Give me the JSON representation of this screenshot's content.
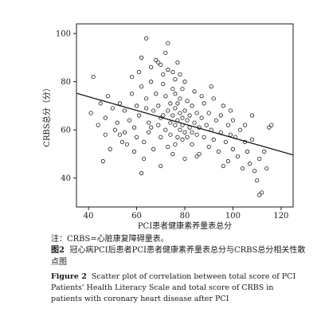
{
  "chart_data": {
    "type": "scatter",
    "xlabel": "PCI患者健康素养量表总分",
    "ylabel": "CRBS总分（分）",
    "xlim": [
      35,
      125
    ],
    "ylim": [
      28,
      104
    ],
    "xticks": [
      40,
      60,
      80,
      100,
      120
    ],
    "yticks": [
      40,
      60,
      80,
      100
    ],
    "grid": false,
    "trendline": {
      "x": [
        35,
        125
      ],
      "y": [
        75.2,
        49.6
      ]
    },
    "points": [
      [
        41,
        67
      ],
      [
        42,
        82
      ],
      [
        44,
        62
      ],
      [
        45,
        71
      ],
      [
        46,
        47
      ],
      [
        47,
        65
      ],
      [
        48,
        74
      ],
      [
        49,
        52
      ],
      [
        50,
        69
      ],
      [
        51,
        60
      ],
      [
        52,
        63
      ],
      [
        53,
        71
      ],
      [
        54,
        55
      ],
      [
        55,
        68
      ],
      [
        55,
        59
      ],
      [
        56,
        54
      ],
      [
        57,
        64
      ],
      [
        58,
        75
      ],
      [
        59,
        61
      ],
      [
        59,
        51
      ],
      [
        60,
        70
      ],
      [
        60,
        57
      ],
      [
        61,
        84
      ],
      [
        61,
        66
      ],
      [
        62,
        78
      ],
      [
        62,
        42
      ],
      [
        63,
        48
      ],
      [
        63,
        55
      ],
      [
        64,
        73
      ],
      [
        64,
        98
      ],
      [
        65,
        63
      ],
      [
        65,
        59
      ],
      [
        66,
        80
      ],
      [
        66,
        86
      ],
      [
        67,
        68
      ],
      [
        67,
        52
      ],
      [
        68,
        75
      ],
      [
        68,
        89
      ],
      [
        69,
        62
      ],
      [
        69,
        70
      ],
      [
        70,
        45
      ],
      [
        70,
        57
      ],
      [
        70,
        87
      ],
      [
        71,
        66
      ],
      [
        71,
        79
      ],
      [
        71,
        83
      ],
      [
        72,
        60
      ],
      [
        72,
        74
      ],
      [
        72,
        92
      ],
      [
        73,
        68
      ],
      [
        73,
        53
      ],
      [
        73,
        85
      ],
      [
        74,
        63
      ],
      [
        74,
        71
      ],
      [
        74,
        58
      ],
      [
        75,
        77
      ],
      [
        75,
        66
      ],
      [
        75,
        84
      ],
      [
        75,
        50
      ],
      [
        76,
        62
      ],
      [
        76,
        69
      ],
      [
        76,
        75
      ],
      [
        76,
        81
      ],
      [
        77,
        64
      ],
      [
        77,
        57
      ],
      [
        77,
        88
      ],
      [
        77,
        71
      ],
      [
        78,
        67
      ],
      [
        78,
        60
      ],
      [
        78,
        73
      ],
      [
        78,
        83
      ],
      [
        79,
        65
      ],
      [
        79,
        56
      ],
      [
        79,
        77
      ],
      [
        79,
        62
      ],
      [
        80,
        68
      ],
      [
        80,
        59
      ],
      [
        80,
        80
      ],
      [
        80,
        48
      ],
      [
        81,
        64
      ],
      [
        81,
        72
      ],
      [
        81,
        57
      ],
      [
        82,
        66
      ],
      [
        82,
        61
      ],
      [
        83,
        70
      ],
      [
        83,
        54
      ],
      [
        84,
        63
      ],
      [
        84,
        76
      ],
      [
        85,
        58
      ],
      [
        85,
        67
      ],
      [
        86,
        61
      ],
      [
        86,
        50
      ],
      [
        87,
        65
      ],
      [
        88,
        71
      ],
      [
        88,
        57
      ],
      [
        89,
        62
      ],
      [
        90,
        53
      ],
      [
        90,
        67
      ],
      [
        91,
        60
      ],
      [
        92,
        73
      ],
      [
        92,
        56
      ],
      [
        93,
        64
      ],
      [
        94,
        51
      ],
      [
        95,
        59
      ],
      [
        95,
        66
      ],
      [
        96,
        70
      ],
      [
        97,
        55
      ],
      [
        98,
        62
      ],
      [
        98,
        47
      ],
      [
        99,
        58
      ],
      [
        100,
        64
      ],
      [
        100,
        52
      ],
      [
        101,
        57
      ],
      [
        102,
        49
      ],
      [
        103,
        60
      ],
      [
        104,
        44
      ],
      [
        105,
        55
      ],
      [
        106,
        51
      ],
      [
        107,
        46
      ],
      [
        108,
        56
      ],
      [
        109,
        43
      ],
      [
        110,
        39
      ],
      [
        111,
        48
      ],
      [
        112,
        34
      ],
      [
        113,
        51
      ],
      [
        114,
        44
      ],
      [
        115,
        61
      ],
      [
        116,
        62
      ],
      [
        108,
        66
      ],
      [
        91,
        78
      ],
      [
        85,
        49
      ],
      [
        66,
        61
      ],
      [
        58,
        82
      ],
      [
        73,
        96
      ],
      [
        69,
        88
      ],
      [
        83,
        59
      ],
      [
        96,
        45
      ],
      [
        111,
        33
      ],
      [
        105,
        62
      ],
      [
        64,
        69
      ],
      [
        76,
        54
      ],
      [
        87,
        74
      ],
      [
        99,
        68
      ],
      [
        53,
        58
      ],
      [
        47,
        58
      ],
      [
        70,
        65
      ],
      [
        62,
        90
      ]
    ]
  },
  "footnote": "注：CRBS=心脏康复障碍量表。",
  "caption_cn": {
    "figure_number": "图2",
    "text": "冠心病PCI后患者PCI患者健康素养量表总分与CRBS总分相关性散点图"
  },
  "caption_en": {
    "figure_number": "Figure 2",
    "text": "Scatter plot of correlation between total score of PCI Patients' Health Literacy Scale and total score of CRBS in patients with coronary heart disease after PCI"
  }
}
